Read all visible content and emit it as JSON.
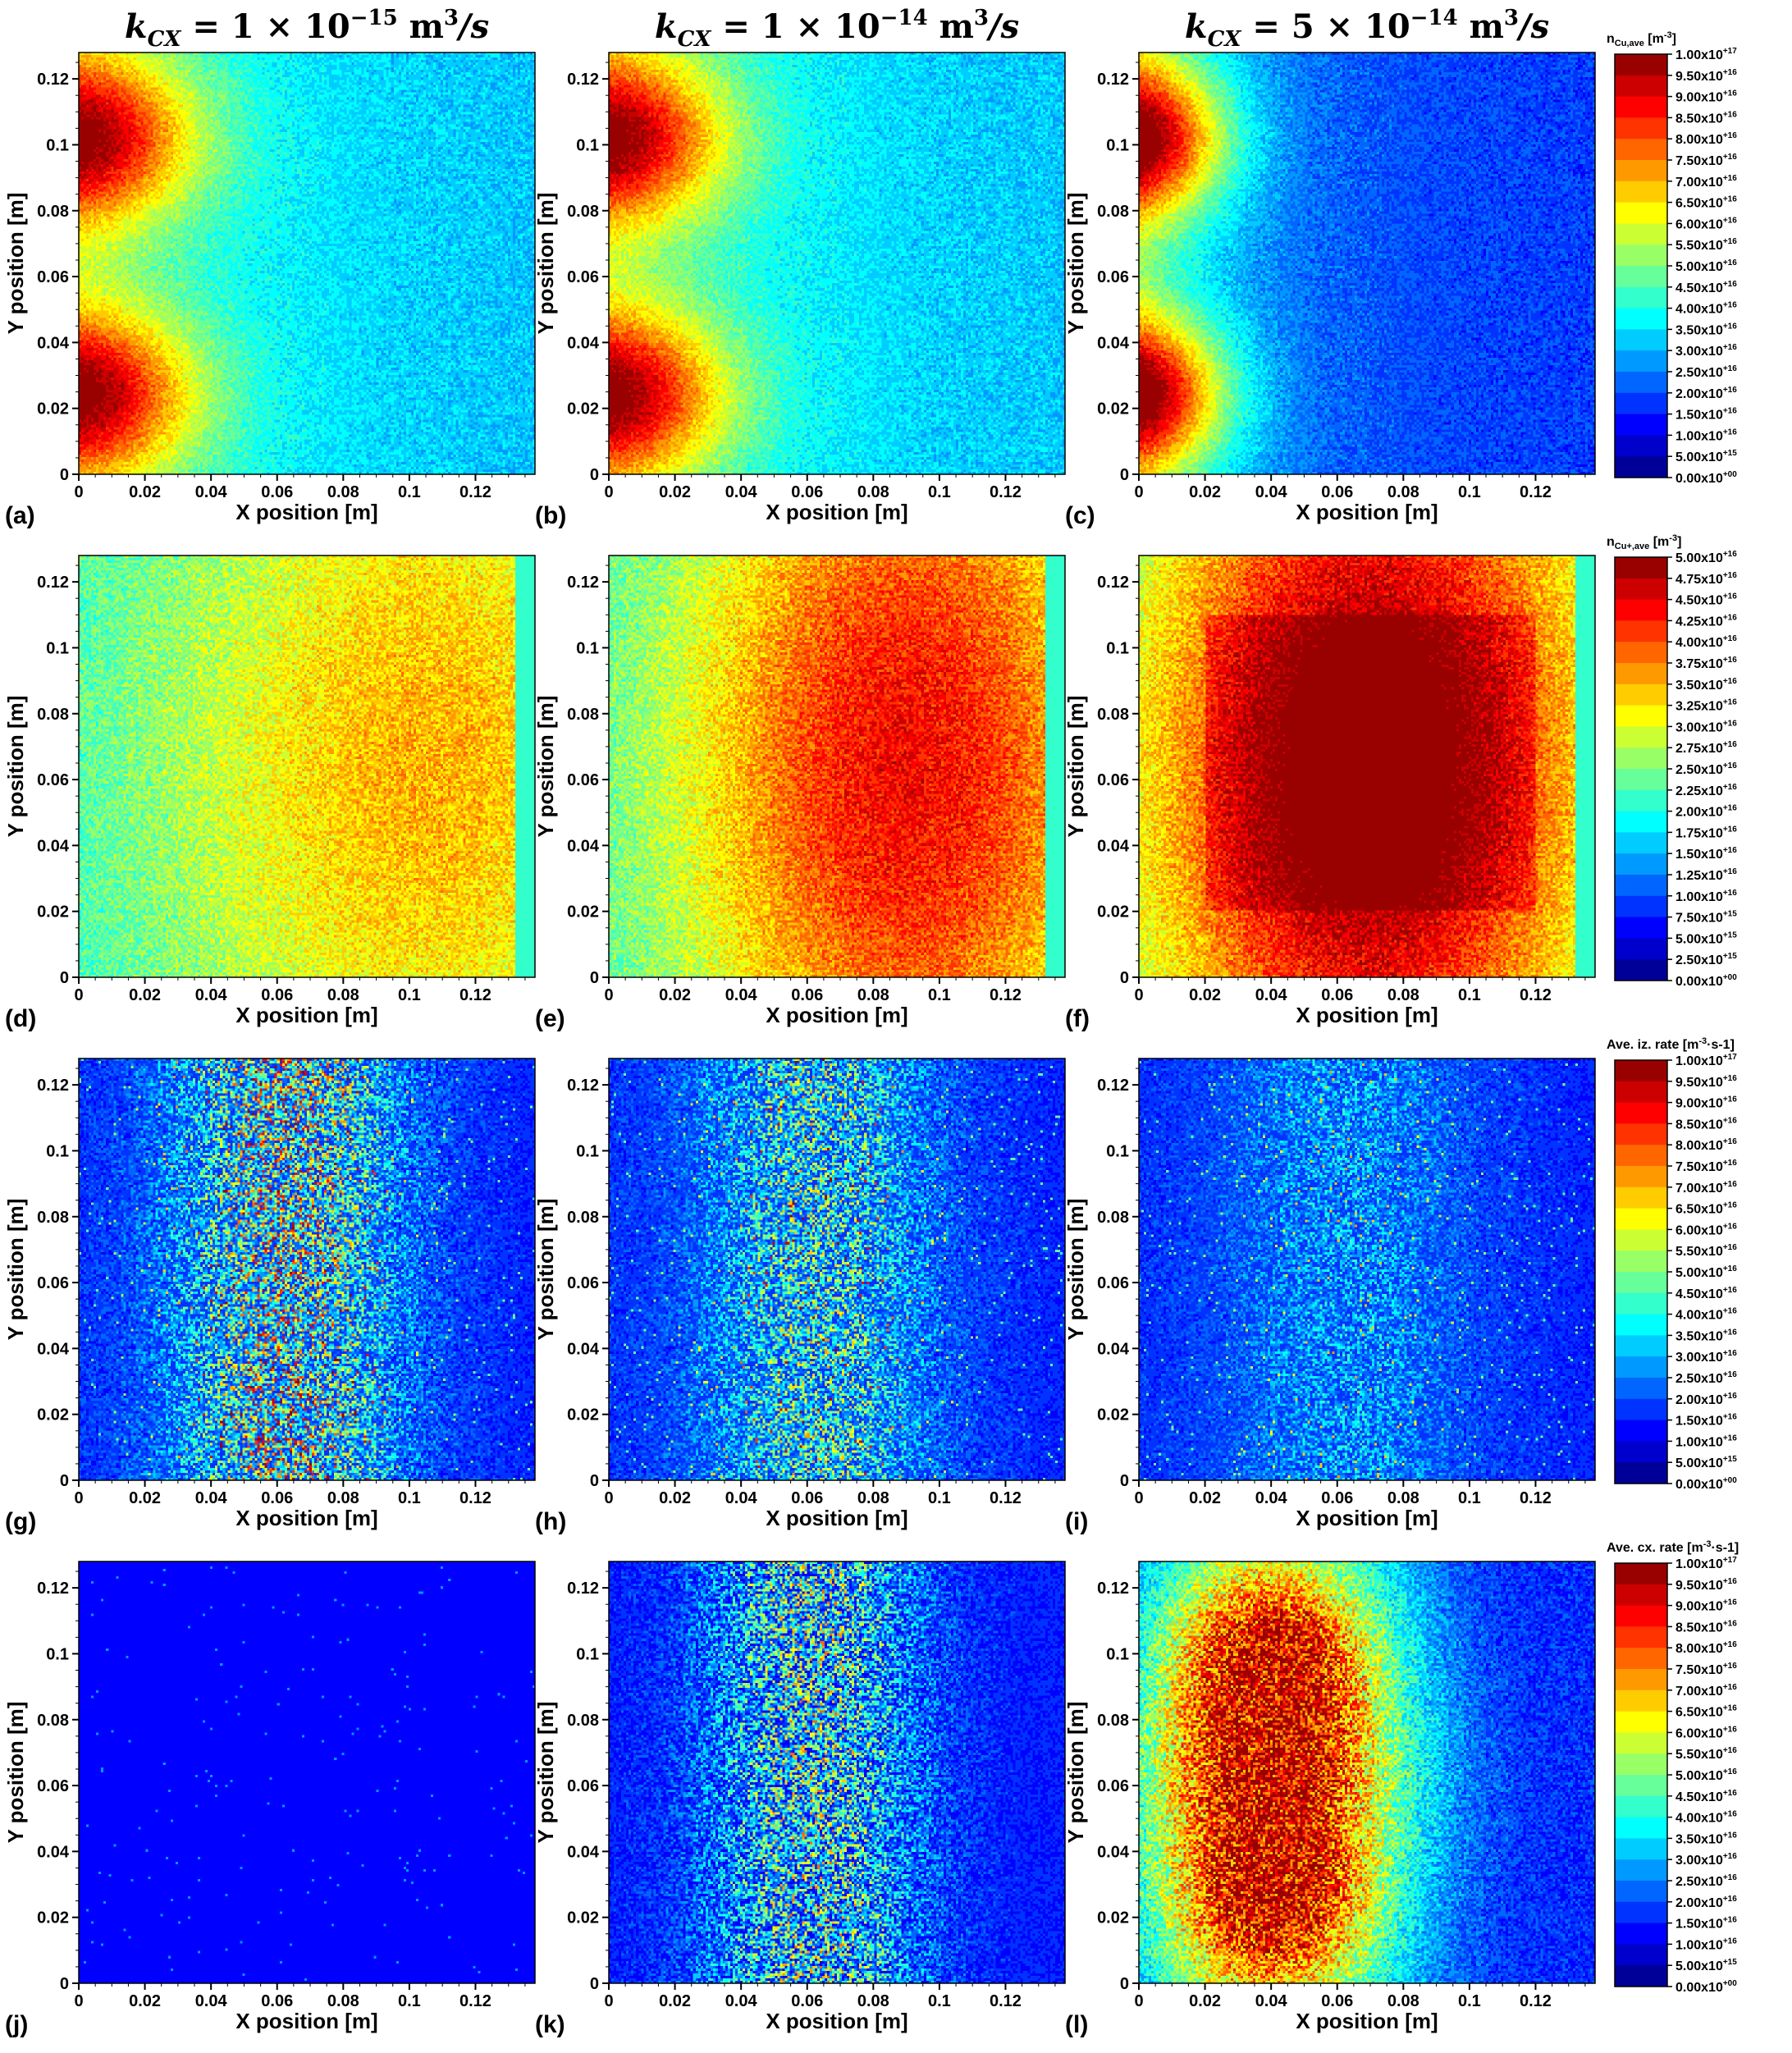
{
  "column_titles": [
    {
      "k": "k",
      "sub": "CX",
      "value": " = 1 × 10",
      "exp": "−15",
      "unit": " m",
      "unit_exp": "3",
      "tail": "/s"
    },
    {
      "k": "k",
      "sub": "CX",
      "value": " = 1 × 10",
      "exp": "−14",
      "unit": " m",
      "unit_exp": "3",
      "tail": "/s"
    },
    {
      "k": "k",
      "sub": "CX",
      "value": " = 5 × 10",
      "exp": "−14",
      "unit": " m",
      "unit_exp": "3",
      "tail": "/s"
    }
  ],
  "colormap": "jet",
  "chart_data": [
    {
      "type": "heatmap",
      "panel": "(a)",
      "row": 0,
      "col": 0,
      "quantity": "n_Cu,ave",
      "pattern": "neutral",
      "kcx": 1e-15,
      "xlabel": "X position [m]",
      "ylabel": "Y position [m]",
      "xlim": [
        0,
        0.138
      ],
      "ylim": [
        0,
        0.128
      ]
    },
    {
      "type": "heatmap",
      "panel": "(b)",
      "row": 0,
      "col": 1,
      "quantity": "n_Cu,ave",
      "pattern": "neutral",
      "kcx": 1e-14,
      "xlabel": "X position [m]",
      "ylabel": "Y position [m]",
      "xlim": [
        0,
        0.138
      ],
      "ylim": [
        0,
        0.128
      ]
    },
    {
      "type": "heatmap",
      "panel": "(c)",
      "row": 0,
      "col": 2,
      "quantity": "n_Cu,ave",
      "pattern": "neutral",
      "kcx": 5e-14,
      "xlabel": "X position [m]",
      "ylabel": "Y position [m]",
      "xlim": [
        0,
        0.138
      ],
      "ylim": [
        0,
        0.128
      ]
    },
    {
      "type": "heatmap",
      "panel": "(d)",
      "row": 1,
      "col": 0,
      "quantity": "n_Cu+,ave",
      "pattern": "ion",
      "kcx": 1e-15,
      "xlabel": "X position [m]",
      "ylabel": "Y position [m]",
      "xlim": [
        0,
        0.138
      ],
      "ylim": [
        0,
        0.128
      ]
    },
    {
      "type": "heatmap",
      "panel": "(e)",
      "row": 1,
      "col": 1,
      "quantity": "n_Cu+,ave",
      "pattern": "ion",
      "kcx": 1e-14,
      "xlabel": "X position [m]",
      "ylabel": "Y position [m]",
      "xlim": [
        0,
        0.138
      ],
      "ylim": [
        0,
        0.128
      ]
    },
    {
      "type": "heatmap",
      "panel": "(f)",
      "row": 1,
      "col": 2,
      "quantity": "n_Cu+,ave",
      "pattern": "ion",
      "kcx": 5e-14,
      "xlabel": "X position [m]",
      "ylabel": "Y position [m]",
      "xlim": [
        0,
        0.138
      ],
      "ylim": [
        0,
        0.128
      ]
    },
    {
      "type": "heatmap",
      "panel": "(g)",
      "row": 2,
      "col": 0,
      "quantity": "Ave. iz. rate",
      "pattern": "iz",
      "kcx": 1e-15,
      "xlabel": "X position [m]",
      "ylabel": "Y position [m]",
      "xlim": [
        0,
        0.138
      ],
      "ylim": [
        0,
        0.128
      ]
    },
    {
      "type": "heatmap",
      "panel": "(h)",
      "row": 2,
      "col": 1,
      "quantity": "Ave. iz. rate",
      "pattern": "iz",
      "kcx": 1e-14,
      "xlabel": "X position [m]",
      "ylabel": "Y position [m]",
      "xlim": [
        0,
        0.138
      ],
      "ylim": [
        0,
        0.128
      ]
    },
    {
      "type": "heatmap",
      "panel": "(i)",
      "row": 2,
      "col": 2,
      "quantity": "Ave. iz. rate",
      "pattern": "iz",
      "kcx": 5e-14,
      "xlabel": "X position [m]",
      "ylabel": "Y position [m]",
      "xlim": [
        0,
        0.138
      ],
      "ylim": [
        0,
        0.128
      ]
    },
    {
      "type": "heatmap",
      "panel": "(j)",
      "row": 3,
      "col": 0,
      "quantity": "Ave. cx. rate",
      "pattern": "cx",
      "kcx": 1e-15,
      "xlabel": "X position [m]",
      "ylabel": "Y position [m]",
      "xlim": [
        0,
        0.138
      ],
      "ylim": [
        0,
        0.128
      ]
    },
    {
      "type": "heatmap",
      "panel": "(k)",
      "row": 3,
      "col": 1,
      "quantity": "Ave. cx. rate",
      "pattern": "cx",
      "kcx": 1e-14,
      "xlabel": "X position [m]",
      "ylabel": "Y position [m]",
      "xlim": [
        0,
        0.138
      ],
      "ylim": [
        0,
        0.128
      ]
    },
    {
      "type": "heatmap",
      "panel": "(l)",
      "row": 3,
      "col": 2,
      "quantity": "Ave. cx. rate",
      "pattern": "cx",
      "kcx": 5e-14,
      "xlabel": "X position [m]",
      "ylabel": "Y position [m]",
      "xlim": [
        0,
        0.138
      ],
      "ylim": [
        0,
        0.128
      ]
    }
  ],
  "x_ticks": [
    "0",
    "0.02",
    "0.04",
    "0.06",
    "0.08",
    "0.1",
    "0.12"
  ],
  "x_tick_values": [
    0,
    0.02,
    0.04,
    0.06,
    0.08,
    0.1,
    0.12
  ],
  "y_ticks": [
    "0",
    "0.02",
    "0.04",
    "0.06",
    "0.08",
    "0.1",
    "0.12"
  ],
  "y_tick_values": [
    0,
    0.02,
    0.04,
    0.06,
    0.08,
    0.1,
    0.12
  ],
  "xlabel": "X position [m]",
  "ylabel": "Y position [m]",
  "colorbars": [
    {
      "row": 0,
      "title": "n",
      "title_sub": "Cu,ave",
      "title_unit": "[m",
      "title_unit_sup": "-3",
      "title_tail": "]",
      "labels": [
        "1.00x10+17",
        "9.50x10+16",
        "9.00x10+16",
        "8.50x10+16",
        "8.00x10+16",
        "7.50x10+16",
        "7.00x10+16",
        "6.50x10+16",
        "6.00x10+16",
        "5.50x10+16",
        "5.00x10+16",
        "4.50x10+16",
        "4.00x10+16",
        "3.50x10+16",
        "3.00x10+16",
        "2.50x10+16",
        "2.00x10+16",
        "1.50x10+16",
        "1.00x10+16",
        "5.00x10+15",
        "0.00x10+00"
      ]
    },
    {
      "row": 1,
      "title": "n",
      "title_sub": "Cu+,ave",
      "title_unit": "[m",
      "title_unit_sup": "-3",
      "title_tail": "]",
      "labels": [
        "5.00x10+16",
        "4.75x10+16",
        "4.50x10+16",
        "4.25x10+16",
        "4.00x10+16",
        "3.75x10+16",
        "3.50x10+16",
        "3.25x10+16",
        "3.00x10+16",
        "2.75x10+16",
        "2.50x10+16",
        "2.25x10+16",
        "2.00x10+16",
        "1.75x10+16",
        "1.50x10+16",
        "1.25x10+16",
        "1.00x10+16",
        "7.50x10+15",
        "5.00x10+15",
        "2.50x10+15",
        "0.00x10+00"
      ]
    },
    {
      "row": 2,
      "title": "Ave. iz. rate",
      "title_sub": "",
      "title_unit": "[m",
      "title_unit_sup": "-3",
      "title_tail": "·s-1]",
      "labels": [
        "1.00x10+17",
        "9.50x10+16",
        "9.00x10+16",
        "8.50x10+16",
        "8.00x10+16",
        "7.50x10+16",
        "7.00x10+16",
        "6.50x10+16",
        "6.00x10+16",
        "5.50x10+16",
        "5.00x10+16",
        "4.50x10+16",
        "4.00x10+16",
        "3.50x10+16",
        "3.00x10+16",
        "2.50x10+16",
        "2.00x10+16",
        "1.50x10+16",
        "1.00x10+16",
        "5.00x10+15",
        "0.00x10+00"
      ]
    },
    {
      "row": 3,
      "title": "Ave. cx. rate",
      "title_sub": "",
      "title_unit": "[m",
      "title_unit_sup": "-3",
      "title_tail": "·s-1]",
      "labels": [
        "1.00x10+17",
        "9.50x10+16",
        "9.00x10+16",
        "8.50x10+16",
        "8.00x10+16",
        "7.50x10+16",
        "7.00x10+16",
        "6.50x10+16",
        "6.00x10+16",
        "5.50x10+16",
        "5.00x10+16",
        "4.50x10+16",
        "4.00x10+16",
        "3.50x10+16",
        "3.00x10+16",
        "2.50x10+16",
        "2.00x10+16",
        "1.50x10+16",
        "1.00x10+16",
        "5.00x10+15",
        "0.00x10+00"
      ]
    }
  ]
}
